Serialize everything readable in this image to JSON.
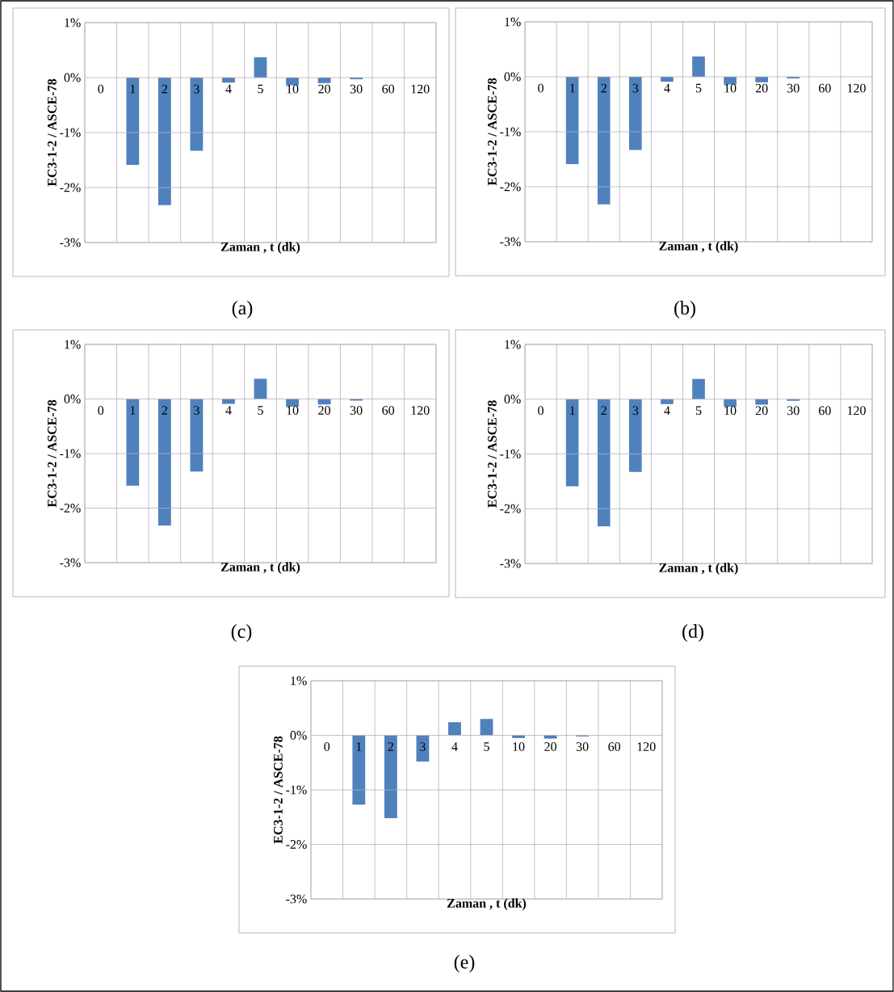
{
  "chart_data": [
    {
      "type": "bar",
      "annotations": [
        "(a)"
      ],
      "xlabel": "Zaman , t  (dk)",
      "ylabel": "EC3-1-2  /  ASCE-78",
      "categories": [
        "0",
        "1",
        "2",
        "3",
        "4",
        "5",
        "10",
        "20",
        "30",
        "60",
        "120"
      ],
      "values": [
        0,
        -1.59,
        -2.32,
        -1.33,
        -0.09,
        0.37,
        -0.14,
        -0.1,
        -0.03,
        0,
        0
      ],
      "color": "#4f81bd",
      "ylim": [
        -3,
        1
      ],
      "yticks": [
        {
          "value": -3,
          "label": "-3%"
        },
        {
          "value": -2,
          "label": "-2%"
        },
        {
          "value": -1,
          "label": "-1%"
        },
        {
          "value": 0,
          "label": "0%"
        },
        {
          "value": 1,
          "label": "1%"
        }
      ],
      "grid": true
    },
    {
      "type": "bar",
      "annotations": [
        "(b)"
      ],
      "xlabel": "Zaman , t  (dk)",
      "ylabel": "EC3-1-2  /  ASCE-78",
      "categories": [
        "0",
        "1",
        "2",
        "3",
        "4",
        "5",
        "10",
        "20",
        "30",
        "60",
        "120"
      ],
      "values": [
        0,
        -1.59,
        -2.32,
        -1.33,
        -0.09,
        0.37,
        -0.14,
        -0.1,
        -0.03,
        0,
        0
      ],
      "color": "#4f81bd",
      "ylim": [
        -3,
        1
      ],
      "yticks": [
        {
          "value": -3,
          "label": "-3%"
        },
        {
          "value": -2,
          "label": "-2%"
        },
        {
          "value": -1,
          "label": "-1%"
        },
        {
          "value": 0,
          "label": "0%"
        },
        {
          "value": 1,
          "label": "1%"
        }
      ],
      "grid": true
    },
    {
      "type": "bar",
      "annotations": [
        "(c)"
      ],
      "xlabel": "Zaman , t  (dk)",
      "ylabel": "EC3-1-2  /  ASCE-78",
      "categories": [
        "0",
        "1",
        "2",
        "3",
        "4",
        "5",
        "10",
        "20",
        "30",
        "60",
        "120"
      ],
      "values": [
        0,
        -1.59,
        -2.32,
        -1.33,
        -0.09,
        0.37,
        -0.14,
        -0.1,
        -0.03,
        0,
        0
      ],
      "color": "#4f81bd",
      "ylim": [
        -3,
        1
      ],
      "yticks": [
        {
          "value": -3,
          "label": "-3%"
        },
        {
          "value": -2,
          "label": "-2%"
        },
        {
          "value": -1,
          "label": "-1%"
        },
        {
          "value": 0,
          "label": "0%"
        },
        {
          "value": 1,
          "label": "1%"
        }
      ],
      "grid": true
    },
    {
      "type": "bar",
      "annotations": [
        "(d)"
      ],
      "xlabel": "Zaman , t  (dk)",
      "ylabel": "EC3-1-2  /  ASCE-78",
      "categories": [
        "0",
        "1",
        "2",
        "3",
        "4",
        "5",
        "10",
        "20",
        "30",
        "60",
        "120"
      ],
      "values": [
        0,
        -1.59,
        -2.32,
        -1.33,
        -0.09,
        0.37,
        -0.14,
        -0.1,
        -0.03,
        0,
        0
      ],
      "color": "#4f81bd",
      "ylim": [
        -3,
        1
      ],
      "yticks": [
        {
          "value": -3,
          "label": "-3%"
        },
        {
          "value": -2,
          "label": "-2%"
        },
        {
          "value": -1,
          "label": "-1%"
        },
        {
          "value": 0,
          "label": "0%"
        },
        {
          "value": 1,
          "label": "1%"
        }
      ],
      "grid": true
    },
    {
      "type": "bar",
      "annotations": [
        "(e)"
      ],
      "xlabel": "Zaman , t  (dk)",
      "ylabel": "EC3-1-2  /  ASCE-78",
      "categories": [
        "0",
        "1",
        "2",
        "3",
        "4",
        "5",
        "10",
        "20",
        "30",
        "60",
        "120"
      ],
      "values": [
        0,
        -1.27,
        -1.52,
        -0.48,
        0.24,
        0.3,
        -0.05,
        -0.06,
        -0.02,
        0,
        0
      ],
      "color": "#4f81bd",
      "ylim": [
        -3,
        1
      ],
      "yticks": [
        {
          "value": -3,
          "label": "-3%"
        },
        {
          "value": -2,
          "label": "-2%"
        },
        {
          "value": -1,
          "label": "-1%"
        },
        {
          "value": 0,
          "label": "0%"
        },
        {
          "value": 1,
          "label": "1%"
        }
      ],
      "grid": true
    }
  ]
}
